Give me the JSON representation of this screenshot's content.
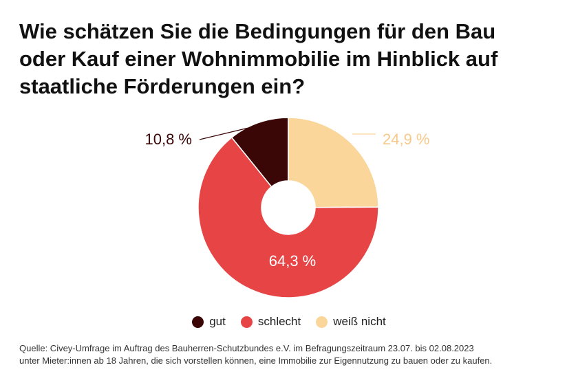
{
  "title_lines": [
    "Wie schätzen Sie die Bedingungen für den Bau",
    "oder Kauf einer Wohnimmobilie im Hinblick auf",
    "staatliche Förderungen ein?"
  ],
  "chart_data": {
    "type": "pie",
    "variant": "donut",
    "title": "Wie schätzen Sie die Bedingungen für den Bau oder Kauf einer Wohnimmobilie im Hinblick auf staatliche Förderungen ein?",
    "unit": "%",
    "slices": [
      {
        "label": "gut",
        "value": 10.8,
        "value_label": "10,8 %",
        "color": "#3a0606"
      },
      {
        "label": "weiß nicht",
        "value": 24.9,
        "value_label": "24,9 %",
        "color": "#fbd69a"
      },
      {
        "label": "schlecht",
        "value": 64.3,
        "value_label": "64,3 %",
        "color": "#e74545"
      }
    ],
    "legend": [
      "gut",
      "schlecht",
      "weiß nicht"
    ],
    "legend_position": "bottom"
  },
  "legend_items": [
    {
      "label": "gut",
      "color": "#3a0606"
    },
    {
      "label": "schlecht",
      "color": "#e74545"
    },
    {
      "label": "weiß nicht",
      "color": "#fbd69a"
    }
  ],
  "source_lines": [
    "Quelle: Civey-Umfrage im Auftrag des Bauherren-Schutzbundes e.V. im Befragungszeitraum 23.07. bis 02.08.2023",
    "unter Mieter:innen ab 18 Jahren, die sich vorstellen können, eine Immobilie zur Eigennutzung zu bauen oder zu kaufen."
  ]
}
